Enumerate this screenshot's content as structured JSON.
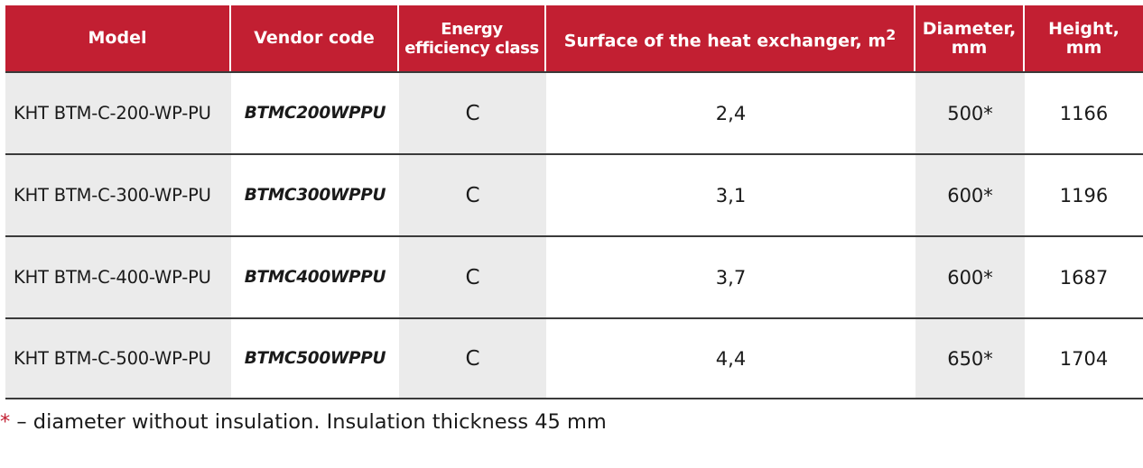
{
  "table": {
    "headers": [
      {
        "line1": "Model",
        "line2": "",
        "sup": ""
      },
      {
        "line1": "Vendor code",
        "line2": "",
        "sup": ""
      },
      {
        "line1": "Energy",
        "line2": "efficiency class",
        "sup": ""
      },
      {
        "line1": "Surface of the heat exchanger, m",
        "line2": "",
        "sup": "2"
      },
      {
        "line1": "Diameter,",
        "line2": "mm",
        "sup": ""
      },
      {
        "line1": "Height,",
        "line2": "mm",
        "sup": ""
      }
    ],
    "rows": [
      {
        "model": "KHT BTM-C-200-WP-PU",
        "vendor": "BTMC200WPPU",
        "energy": "C",
        "surface": "2,4",
        "diameter": "500*",
        "height": "1166"
      },
      {
        "model": "KHT BTM-C-300-WP-PU",
        "vendor": "BTMC300WPPU",
        "energy": "C",
        "surface": "3,1",
        "diameter": "600*",
        "height": "1196"
      },
      {
        "model": "KHT BTM-C-400-WP-PU",
        "vendor": "BTMC400WPPU",
        "energy": "C",
        "surface": "3,7",
        "diameter": "600*",
        "height": "1687"
      },
      {
        "model": "KHT BTM-C-500-WP-PU",
        "vendor": "BTMC500WPPU",
        "energy": "C",
        "surface": "4,4",
        "diameter": "650*",
        "height": "1704"
      }
    ]
  },
  "footnote": {
    "marker": "*",
    "text": " – diameter without insulation. Insulation thickness 45 mm"
  },
  "colors": {
    "header_bg": "#c21f32",
    "header_text": "#ffffff",
    "shaded_cell": "#ebebeb",
    "footnote_marker": "#c21f32"
  }
}
